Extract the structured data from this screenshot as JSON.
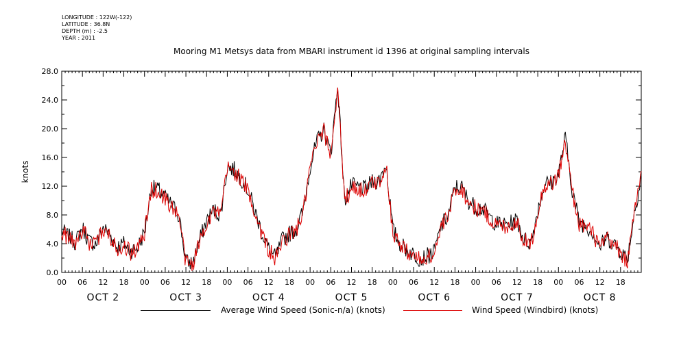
{
  "meta": {
    "longitude": "LONGITUDE : 122W(-122)",
    "latitude": "LATITUDE : 36.8N",
    "depth": "DEPTH (m) : -2.5",
    "year": "YEAR : 2011"
  },
  "chart_data": {
    "type": "line",
    "title": "Mooring M1 Metsys data from MBARI instrument id 1396 at original sampling intervals",
    "xlabel": "",
    "ylabel": "knots",
    "ylim": [
      0,
      28
    ],
    "yticks": [
      "0.0",
      "4.0",
      "8.0",
      "12.0",
      "16.0",
      "20.0",
      "24.0",
      "28.0"
    ],
    "xlim_hours": [
      0,
      168
    ],
    "hour_tick_labels": [
      "00",
      "06",
      "12",
      "18"
    ],
    "day_labels": [
      "OCT 2",
      "OCT 3",
      "OCT 4",
      "OCT 5",
      "OCT 6",
      "OCT 7",
      "OCT 8"
    ],
    "grid": false,
    "legend": "bottom",
    "series": [
      {
        "name": "Average Wind Speed (Sonic-n/a) (knots)",
        "color": "#000000",
        "keypoints_hours": [
          0,
          2,
          4,
          6,
          8,
          10,
          12,
          14,
          16,
          18,
          20,
          22,
          24,
          26,
          28,
          30,
          32,
          34,
          36,
          38,
          40,
          42,
          44,
          46,
          48,
          50,
          52,
          54,
          56,
          58,
          60,
          62,
          64,
          66,
          68,
          70,
          72,
          74,
          76,
          78,
          80,
          82,
          84,
          86,
          88,
          90,
          92,
          94,
          96,
          98,
          100,
          102,
          104,
          106,
          108,
          110,
          112,
          114,
          116,
          118,
          120,
          122,
          124,
          126,
          128,
          130,
          132,
          134,
          136,
          138,
          140,
          142,
          144,
          146,
          148,
          150,
          152,
          154,
          156,
          158,
          160,
          162,
          164,
          166,
          168
        ],
        "keypoints_values": [
          5.8,
          5.0,
          4.2,
          6.2,
          4.3,
          4.0,
          6.3,
          5.2,
          3.6,
          4.0,
          3.0,
          3.5,
          5.6,
          11.8,
          11.5,
          10.4,
          9.3,
          8.0,
          1.5,
          1.3,
          4.6,
          7.2,
          8.7,
          8.0,
          14.7,
          14.3,
          13.1,
          11.5,
          8.5,
          5.6,
          3.3,
          2.0,
          4.6,
          5.4,
          6.1,
          8.5,
          14.8,
          18.2,
          19.8,
          16.5,
          26.2,
          10.0,
          12.1,
          11.8,
          11.6,
          12.6,
          12.8,
          15.1,
          5.9,
          4.0,
          3.2,
          2.5,
          1.9,
          2.3,
          2.8,
          6.5,
          7.8,
          11.9,
          11.8,
          9.9,
          9.1,
          8.9,
          7.7,
          6.8,
          6.6,
          6.8,
          7.3,
          4.6,
          4.1,
          8.7,
          12.4,
          12.5,
          13.7,
          18.8,
          11.5,
          7.0,
          6.5,
          5.6,
          3.6,
          4.8,
          4.0,
          3.0,
          1.9,
          8.3,
          13.5
        ]
      },
      {
        "name": "Wind Speed (Windbird) (knots)",
        "color": "#dd0000",
        "keypoints_hours": [
          0,
          2,
          4,
          6,
          8,
          10,
          12,
          14,
          16,
          18,
          20,
          22,
          24,
          26,
          28,
          30,
          32,
          34,
          36,
          38,
          40,
          42,
          44,
          46,
          48,
          50,
          52,
          54,
          56,
          58,
          60,
          62,
          64,
          66,
          68,
          70,
          72,
          74,
          76,
          78,
          80,
          82,
          84,
          86,
          88,
          90,
          92,
          94,
          96,
          98,
          100,
          102,
          104,
          106,
          108,
          110,
          112,
          114,
          116,
          118,
          120,
          122,
          124,
          126,
          128,
          130,
          132,
          134,
          136,
          138,
          140,
          142,
          144,
          146,
          148,
          150,
          152,
          154,
          156,
          158,
          160,
          162,
          164,
          166,
          168
        ],
        "keypoints_values": [
          5.6,
          4.8,
          4.0,
          6.0,
          4.1,
          3.8,
          6.1,
          5.0,
          3.4,
          3.8,
          2.8,
          3.3,
          5.4,
          11.6,
          11.3,
          10.2,
          9.1,
          7.8,
          1.3,
          1.1,
          4.4,
          7.0,
          8.5,
          7.8,
          14.5,
          14.1,
          12.9,
          11.3,
          8.3,
          5.4,
          3.1,
          1.8,
          4.4,
          5.2,
          5.9,
          8.3,
          14.6,
          18.0,
          19.6,
          16.3,
          26.0,
          9.8,
          11.9,
          11.6,
          11.4,
          12.4,
          12.6,
          14.9,
          5.7,
          3.8,
          3.0,
          2.3,
          1.7,
          2.1,
          2.6,
          6.3,
          7.6,
          11.7,
          11.6,
          9.7,
          8.9,
          8.7,
          7.5,
          6.6,
          6.4,
          6.6,
          7.1,
          4.4,
          3.9,
          8.5,
          12.2,
          12.3,
          13.5,
          18.2,
          11.3,
          6.8,
          6.3,
          5.4,
          3.4,
          4.6,
          3.8,
          2.8,
          1.3,
          8.1,
          13.8
        ]
      }
    ]
  }
}
